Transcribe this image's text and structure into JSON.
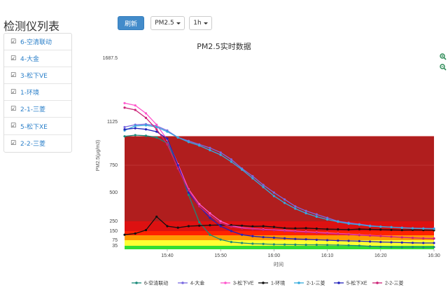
{
  "sidebar": {
    "title": "检测仪列表",
    "items": [
      {
        "label": "6-空清联动"
      },
      {
        "label": "4-大金"
      },
      {
        "label": "3-松下VE"
      },
      {
        "label": "1-环境"
      },
      {
        "label": "2-1-三菱"
      },
      {
        "label": "5-松下XE"
      },
      {
        "label": "2-2-三菱"
      }
    ]
  },
  "toolbar": {
    "refresh_label": "刷新",
    "metric_value": "PM2.5",
    "interval_value": "1h"
  },
  "zoom": {
    "in_icon": "zoom-in-icon",
    "out_icon": "zoom-out-icon"
  },
  "chart_data": {
    "type": "line",
    "title": "PM2.5实时数据",
    "xlabel": "时间",
    "ylabel": "PM2.5(μg/m3)",
    "x_ticks": [
      "15:40",
      "15:50",
      "16:00",
      "16:10",
      "16:20",
      "16:30"
    ],
    "y_ticks": [
      0,
      35,
      75,
      150,
      250,
      500,
      750,
      1125,
      1687.5
    ],
    "y_tick_labels": [
      "35",
      "75",
      "150",
      "250",
      "500",
      "750",
      "1125",
      "1687.5"
    ],
    "x": [
      "15:32",
      "15:34",
      "15:36",
      "15:38",
      "15:40",
      "15:42",
      "15:44",
      "15:46",
      "15:48",
      "15:50",
      "15:52",
      "15:54",
      "15:56",
      "15:58",
      "16:00",
      "16:02",
      "16:04",
      "16:06",
      "16:08",
      "16:10",
      "16:12",
      "16:14",
      "16:16",
      "16:18",
      "16:20",
      "16:22",
      "16:24",
      "16:26",
      "16:28",
      "16:30"
    ],
    "bands": [
      {
        "from": 0,
        "to": 35,
        "color": "#33dd33"
      },
      {
        "from": 35,
        "to": 75,
        "color": "#ffff33"
      },
      {
        "from": 75,
        "to": 115,
        "color": "#ff9900"
      },
      {
        "from": 115,
        "to": 150,
        "color": "#ff2200"
      },
      {
        "from": 150,
        "to": 250,
        "color": "#dd1111"
      },
      {
        "from": 250,
        "to": 1000,
        "color": "#b01e1e"
      }
    ],
    "series": [
      {
        "name": "6-空清联动",
        "color": "#1a8a7a",
        "values": [
          1000,
          1010,
          1005,
          990,
          940,
          760,
          480,
          240,
          120,
          80,
          62,
          55,
          50,
          48,
          45,
          44,
          43,
          42,
          42,
          41,
          40,
          38,
          36,
          30,
          25,
          22,
          20,
          22,
          20,
          22
        ]
      },
      {
        "name": "4-大金",
        "color": "#7a6ae0",
        "values": [
          1080,
          1100,
          1105,
          1090,
          1050,
          990,
          960,
          930,
          900,
          860,
          800,
          720,
          650,
          570,
          500,
          440,
          380,
          340,
          310,
          280,
          250,
          235,
          220,
          205,
          195,
          190,
          185,
          180,
          178,
          176
        ]
      },
      {
        "name": "3-松下VE",
        "color": "#ff55cc",
        "values": [
          1290,
          1270,
          1200,
          1100,
          970,
          760,
          530,
          400,
          320,
          250,
          205,
          185,
          175,
          168,
          162,
          158,
          150,
          145,
          140,
          135,
          130,
          125,
          120,
          115,
          110,
          105,
          100,
          95,
          92,
          90
        ]
      },
      {
        "name": "1-环境",
        "color": "#111111",
        "values": [
          120,
          130,
          160,
          290,
          200,
          185,
          200,
          205,
          210,
          212,
          210,
          205,
          198,
          200,
          192,
          180,
          178,
          180,
          175,
          170,
          168,
          165,
          170,
          168,
          165,
          162,
          160,
          162,
          160,
          158
        ]
      },
      {
        "name": "2-1-三菱",
        "color": "#33aadd",
        "values": [
          1050,
          1090,
          1095,
          1080,
          1040,
          990,
          950,
          920,
          880,
          840,
          780,
          710,
          630,
          550,
          470,
          410,
          360,
          320,
          290,
          265,
          245,
          225,
          215,
          200,
          195,
          190,
          182,
          178,
          175,
          172
        ]
      },
      {
        "name": "5-松下XE",
        "color": "#2222bb",
        "values": [
          1060,
          1070,
          1060,
          1040,
          980,
          750,
          500,
          380,
          280,
          200,
          150,
          120,
          108,
          100,
          95,
          90,
          85,
          82,
          78,
          75,
          72,
          70,
          68,
          65,
          62,
          60,
          58,
          56,
          55,
          55
        ]
      },
      {
        "name": "2-2-三菱",
        "color": "#cc2277",
        "values": [
          1250,
          1230,
          1160,
          1060,
          930,
          720,
          520,
          380,
          300,
          230,
          195,
          178,
          170,
          163,
          158,
          150,
          145,
          140,
          136,
          130,
          126,
          121,
          116,
          112,
          108,
          103,
          98,
          94,
          90,
          88
        ]
      }
    ]
  }
}
